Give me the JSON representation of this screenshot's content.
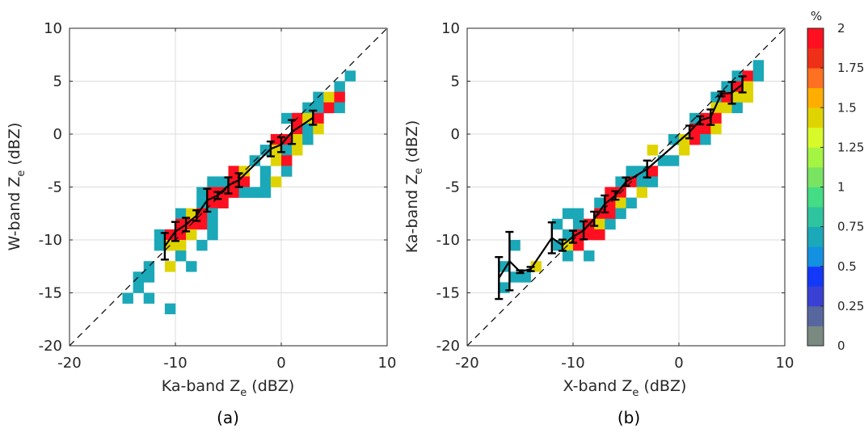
{
  "chart_data": [
    {
      "type": "heatmap",
      "panel_label": "(a)",
      "xlabel_main": "Ka-band Z",
      "xlabel_sub": "e",
      "xlabel_unit": " (dBZ)",
      "ylabel_main": "W-band Z",
      "ylabel_sub": "e",
      "ylabel_unit": " (dBZ)",
      "xlim": [
        -20,
        10
      ],
      "ylim": [
        -20,
        10
      ],
      "xticks": [
        -20,
        -10,
        0,
        10
      ],
      "yticks": [
        10,
        5,
        0,
        -5,
        -10,
        -15,
        -20
      ],
      "bin_size_dBZ": 1,
      "cells_x0_y0_percent": [
        [
          6,
          5,
          0.7
        ],
        [
          5,
          4,
          0.7
        ],
        [
          3,
          3,
          0.7
        ],
        [
          4,
          3,
          1.45
        ],
        [
          5,
          3,
          2
        ],
        [
          2,
          2,
          0.7
        ],
        [
          3,
          2,
          0.7
        ],
        [
          4,
          2,
          2
        ],
        [
          5,
          2,
          0.7
        ],
        [
          0,
          1,
          0.7
        ],
        [
          1,
          1,
          2
        ],
        [
          2,
          1,
          1.45
        ],
        [
          3,
          1,
          2
        ],
        [
          1,
          0,
          2
        ],
        [
          2,
          0,
          0.7
        ],
        [
          3,
          0,
          1.45
        ],
        [
          -1,
          -1,
          2
        ],
        [
          0,
          -1,
          2
        ],
        [
          1,
          -1,
          1.45
        ],
        [
          2,
          -1,
          0.7
        ],
        [
          -2,
          -2,
          0.7
        ],
        [
          -1,
          -2,
          1.45
        ],
        [
          0,
          -2,
          0.7
        ],
        [
          1,
          -2,
          1.45
        ],
        [
          -3,
          -3,
          0.7
        ],
        [
          -1,
          -3,
          1.45
        ],
        [
          0,
          -3,
          2
        ],
        [
          -5,
          -4,
          2
        ],
        [
          -4,
          -4,
          1.45
        ],
        [
          -2,
          -4,
          0.7
        ],
        [
          0,
          -4,
          0.7
        ],
        [
          -7,
          -5,
          0.7
        ],
        [
          -6,
          -5,
          0.7
        ],
        [
          -5,
          -5,
          2
        ],
        [
          -4,
          -5,
          2
        ],
        [
          -2,
          -5,
          0.7
        ],
        [
          -1,
          -5,
          1.45
        ],
        [
          -8,
          -6,
          0.7
        ],
        [
          -7,
          -6,
          2
        ],
        [
          -6,
          -6,
          2
        ],
        [
          -5,
          -6,
          2
        ],
        [
          -4,
          -6,
          0.7
        ],
        [
          -3,
          -6,
          0.7
        ],
        [
          -2,
          -6,
          0.7
        ],
        [
          -8,
          -7,
          0.7
        ],
        [
          -7,
          -7,
          2
        ],
        [
          -6,
          -7,
          2
        ],
        [
          -10,
          -8,
          0.7
        ],
        [
          -9,
          -8,
          1.45
        ],
        [
          -8,
          -8,
          2
        ],
        [
          -7,
          -8,
          0.7
        ],
        [
          -10,
          -9,
          2
        ],
        [
          -9,
          -9,
          2
        ],
        [
          -8,
          -9,
          2
        ],
        [
          -7,
          -9,
          0.7
        ],
        [
          -12,
          -10,
          0.7
        ],
        [
          -11,
          -10,
          2
        ],
        [
          -10,
          -10,
          2
        ],
        [
          -9,
          -10,
          1.45
        ],
        [
          -7,
          -10,
          0.7
        ],
        [
          -12,
          -11,
          0.7
        ],
        [
          -11,
          -11,
          1.45
        ],
        [
          -10,
          -11,
          1.45
        ],
        [
          -8,
          -11,
          0.7
        ],
        [
          -10,
          -12,
          0.7
        ],
        [
          -13,
          -13,
          0.7
        ],
        [
          -11,
          -13,
          1.45
        ],
        [
          -9,
          -13,
          0.7
        ],
        [
          -14,
          -14,
          0.7
        ],
        [
          -13,
          -14,
          0.7
        ],
        [
          -14,
          -15,
          0.7
        ],
        [
          -15,
          -16,
          0.7
        ],
        [
          -13,
          -16,
          0.7
        ],
        [
          -11,
          -17,
          0.7
        ]
      ],
      "mean_errorbars_x_y_err": [
        [
          -11,
          -10.6,
          1.26
        ],
        [
          -10,
          -9.2,
          0.9
        ],
        [
          -9,
          -8.55,
          0.64
        ],
        [
          -8,
          -7.7,
          0.5
        ],
        [
          -7,
          -6.25,
          1.08
        ],
        [
          -6,
          -5.8,
          0.33
        ],
        [
          -5,
          -4.85,
          0.76
        ],
        [
          -4,
          -4.35,
          0.65
        ],
        [
          -1,
          -1.4,
          0.7
        ],
        [
          0,
          -1.0,
          0.7
        ],
        [
          1,
          0.2,
          1.13
        ],
        [
          3,
          1.55,
          0.67
        ]
      ],
      "one_to_one_line": true
    },
    {
      "type": "heatmap",
      "panel_label": "(b)",
      "xlabel_main": "X-band Z",
      "xlabel_sub": "e",
      "xlabel_unit": " (dBZ)",
      "ylabel_main": "Ka-band Z",
      "ylabel_sub": "e",
      "ylabel_unit": " (dBZ)",
      "xlim": [
        -20,
        10
      ],
      "ylim": [
        -20,
        10
      ],
      "xticks": [
        -20,
        -10,
        0,
        10
      ],
      "yticks": [
        10,
        5,
        0,
        -5,
        -10,
        -15,
        -20
      ],
      "bin_size_dBZ": 1,
      "cells_x0_y0_percent": [
        [
          7,
          6,
          0.7
        ],
        [
          5,
          5,
          0.7
        ],
        [
          6,
          5,
          2
        ],
        [
          7,
          5,
          0.7
        ],
        [
          4,
          4,
          0.7
        ],
        [
          5,
          4,
          2
        ],
        [
          6,
          4,
          1.45
        ],
        [
          3,
          3,
          0.7
        ],
        [
          4,
          3,
          2
        ],
        [
          5,
          3,
          1.45
        ],
        [
          6,
          3,
          1.45
        ],
        [
          3,
          2,
          1.45
        ],
        [
          4,
          2,
          1.45
        ],
        [
          5,
          2,
          0.7
        ],
        [
          1,
          1,
          0.7
        ],
        [
          2,
          1,
          2
        ],
        [
          3,
          1,
          2
        ],
        [
          1,
          0,
          2
        ],
        [
          2,
          0,
          2
        ],
        [
          3,
          0,
          1.45
        ],
        [
          -1,
          -1,
          0.7
        ],
        [
          0,
          -1,
          1.45
        ],
        [
          1,
          -1,
          2
        ],
        [
          2,
          -1,
          0.7
        ],
        [
          -3,
          -2,
          1.45
        ],
        [
          0,
          -2,
          1.45
        ],
        [
          -2,
          -3,
          0.7
        ],
        [
          -1,
          -3,
          0.7
        ],
        [
          -5,
          -4,
          0.7
        ],
        [
          -4,
          -4,
          0.7
        ],
        [
          -3,
          -4,
          2
        ],
        [
          -6,
          -5,
          0.7
        ],
        [
          -5,
          -5,
          2
        ],
        [
          -4,
          -5,
          0.7
        ],
        [
          -3,
          -5,
          0.7
        ],
        [
          -7,
          -6,
          2
        ],
        [
          -6,
          -6,
          2
        ],
        [
          -4,
          -6,
          1.45
        ],
        [
          -8,
          -7,
          0.7
        ],
        [
          -7,
          -7,
          2
        ],
        [
          -6,
          -7,
          1.45
        ],
        [
          -5,
          -7,
          0.7
        ],
        [
          -11,
          -8,
          0.7
        ],
        [
          -10,
          -8,
          0.7
        ],
        [
          -8,
          -8,
          2
        ],
        [
          -7,
          -8,
          2
        ],
        [
          -6,
          -8,
          0.7
        ],
        [
          -12,
          -9,
          0.7
        ],
        [
          -10,
          -9,
          0.7
        ],
        [
          -9,
          -9,
          2
        ],
        [
          -8,
          -9,
          1.45
        ],
        [
          -7,
          -9,
          0.7
        ],
        [
          -11,
          -10,
          0.7
        ],
        [
          -10,
          -10,
          2
        ],
        [
          -9,
          -10,
          2
        ],
        [
          -8,
          -10,
          2
        ],
        [
          -16,
          -11,
          0.7
        ],
        [
          -12,
          -11,
          0.7
        ],
        [
          -11,
          -11,
          1.45
        ],
        [
          -10,
          -11,
          2
        ],
        [
          -11,
          -12,
          0.7
        ],
        [
          -9,
          -12,
          0.7
        ],
        [
          -17,
          -13,
          0.7
        ],
        [
          -14,
          -13,
          1.45
        ],
        [
          -16,
          -14,
          0.7
        ],
        [
          -15,
          -14,
          0.7
        ],
        [
          -17,
          -15,
          0.7
        ]
      ],
      "mean_errorbars_x_y_err": [
        [
          -17,
          -13.6,
          1.98
        ],
        [
          -16,
          -12.0,
          2.76
        ],
        [
          -15,
          -13.0,
          0.13
        ],
        [
          -14,
          -12.75,
          0.2
        ],
        [
          -12,
          -9.8,
          1.46
        ],
        [
          -11,
          -10.5,
          0.53
        ],
        [
          -10,
          -9.7,
          0.57
        ],
        [
          -9,
          -9.1,
          0.85
        ],
        [
          -8,
          -8.0,
          0.67
        ],
        [
          -7,
          -6.6,
          0.8
        ],
        [
          -6,
          -5.8,
          0.4
        ],
        [
          -5,
          -4.5,
          0.4
        ],
        [
          -3,
          -3.3,
          0.8
        ],
        [
          1,
          0.2,
          0.6
        ],
        [
          2,
          1.3,
          0.38
        ],
        [
          3,
          1.6,
          0.73
        ],
        [
          4,
          3.8,
          0.23
        ],
        [
          5,
          3.9,
          1.03
        ],
        [
          6,
          4.7,
          0.76
        ]
      ],
      "one_to_one_line": true
    }
  ],
  "colorbar": {
    "title": "%",
    "range": [
      0,
      2
    ],
    "ticks": [
      "0",
      "0.25",
      "0.5",
      "0.75",
      "1",
      "1.25",
      "1.5",
      "1.75",
      "2"
    ],
    "colors_low_to_high": [
      "#7a8a80",
      "#5866a0",
      "#3a40d4",
      "#1438f8",
      "#1490e0",
      "#1ba8b8",
      "#2ec4a0",
      "#44dc84",
      "#78e462",
      "#a4f444",
      "#d8fa2a",
      "#e0d400",
      "#ffae00",
      "#ff7020",
      "#ee3018",
      "#ff1020"
    ]
  }
}
